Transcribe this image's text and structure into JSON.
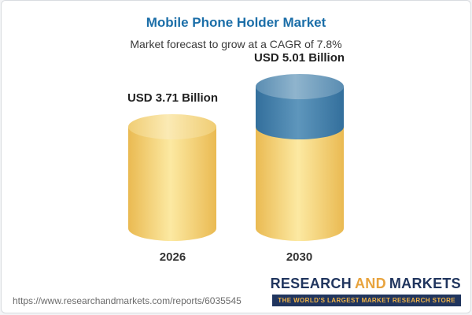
{
  "header": {
    "title": "Mobile Phone Holder Market",
    "subtitle": "Market forecast to grow at a CAGR of 7.8%"
  },
  "chart_data": {
    "type": "bar",
    "categories": [
      "2026",
      "2030"
    ],
    "values": [
      3.71,
      5.01
    ],
    "value_labels": [
      "USD 3.71 Billion",
      "USD 5.01 Billion"
    ],
    "unit": "USD Billion",
    "title": "Mobile Phone Holder Market",
    "subtitle": "Market forecast to grow at a CAGR of 7.8%",
    "cagr_percent": 7.8,
    "legend_position": "none",
    "grid": false,
    "colors": {
      "bar_2026": "#f5d478",
      "bar_2030_bottom": "#f5d478",
      "bar_2030_top": "#3e7ca6",
      "title_blue": "#1b6ea8"
    }
  },
  "footer": {
    "source_url": "https://www.researchandmarkets.com/reports/6035545",
    "logo": {
      "word1": "RESEARCH",
      "word2": "AND",
      "word3": "MARKETS",
      "tagline": "THE WORLD'S LARGEST MARKET RESEARCH STORE"
    }
  }
}
